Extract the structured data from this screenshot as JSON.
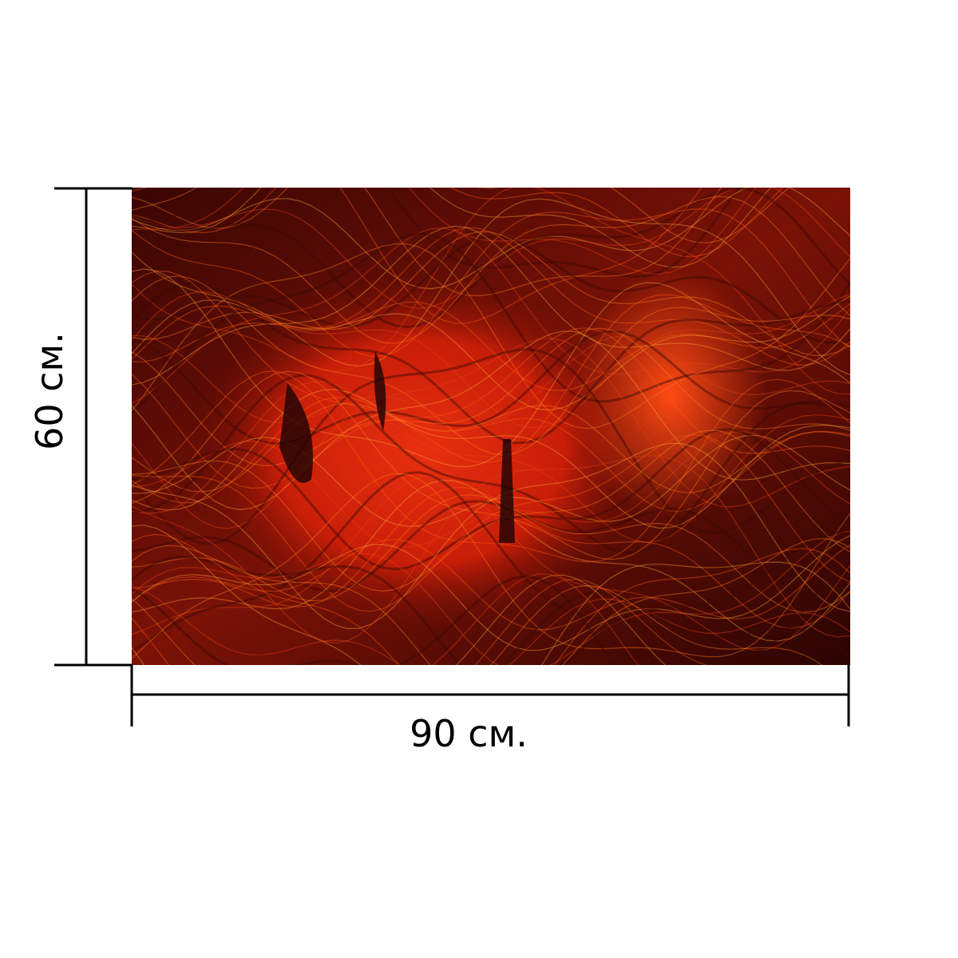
{
  "dimensions": {
    "height_label": "60 см.",
    "width_label": "90 см."
  }
}
